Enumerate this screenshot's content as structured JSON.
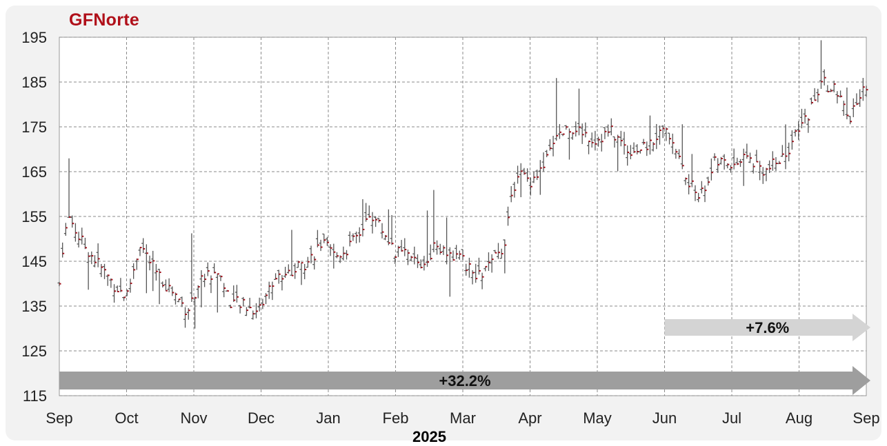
{
  "chart_data": {
    "type": "ohlc",
    "title": "GFNorte",
    "xlabel": "2025",
    "ylabel": "",
    "ylim": [
      115,
      195
    ],
    "yticks": [
      195,
      185,
      175,
      165,
      155,
      145,
      135,
      125,
      115
    ],
    "xtick_labels": [
      "Sep",
      "Oct",
      "Nov",
      "Dec",
      "Jan",
      "Feb",
      "Mar",
      "Apr",
      "May",
      "Jun",
      "Jul",
      "Aug",
      "Sep"
    ],
    "grid": true,
    "annotations": [
      {
        "label": "+7.6%",
        "from_month": "Jun",
        "to_month": "Sep"
      },
      {
        "label": "+32.2%",
        "from_month": "Sep",
        "to_month": "Sep"
      }
    ],
    "colors": {
      "bars": "#555555",
      "close_tick": "#a0101a",
      "title": "#b0101a",
      "arrow_small": "#d4d4d4",
      "arrow_large": "#9e9e9e"
    },
    "anchors": [
      {
        "m": 0.0,
        "v": 140
      },
      {
        "m": 0.06,
        "v": 150
      },
      {
        "m": 0.15,
        "v": 155
      },
      {
        "m": 0.3,
        "v": 150
      },
      {
        "m": 0.55,
        "v": 145
      },
      {
        "m": 0.8,
        "v": 140
      },
      {
        "m": 1.0,
        "v": 137
      },
      {
        "m": 1.2,
        "v": 149
      },
      {
        "m": 1.45,
        "v": 142
      },
      {
        "m": 1.7,
        "v": 138
      },
      {
        "m": 1.9,
        "v": 134
      },
      {
        "m": 2.1,
        "v": 141
      },
      {
        "m": 2.35,
        "v": 143
      },
      {
        "m": 2.55,
        "v": 136
      },
      {
        "m": 2.75,
        "v": 135
      },
      {
        "m": 2.95,
        "v": 134
      },
      {
        "m": 3.2,
        "v": 141
      },
      {
        "m": 3.45,
        "v": 143
      },
      {
        "m": 3.7,
        "v": 145
      },
      {
        "m": 3.9,
        "v": 149
      },
      {
        "m": 4.1,
        "v": 146
      },
      {
        "m": 4.3,
        "v": 148
      },
      {
        "m": 4.5,
        "v": 152
      },
      {
        "m": 4.62,
        "v": 156
      },
      {
        "m": 4.85,
        "v": 151
      },
      {
        "m": 5.0,
        "v": 147
      },
      {
        "m": 5.2,
        "v": 146
      },
      {
        "m": 5.4,
        "v": 144
      },
      {
        "m": 5.6,
        "v": 149
      },
      {
        "m": 5.8,
        "v": 147
      },
      {
        "m": 6.0,
        "v": 145
      },
      {
        "m": 6.2,
        "v": 141
      },
      {
        "m": 6.4,
        "v": 144
      },
      {
        "m": 6.6,
        "v": 148
      },
      {
        "m": 6.8,
        "v": 165
      },
      {
        "m": 7.0,
        "v": 163
      },
      {
        "m": 7.2,
        "v": 166
      },
      {
        "m": 7.45,
        "v": 174
      },
      {
        "m": 7.7,
        "v": 175
      },
      {
        "m": 7.95,
        "v": 172
      },
      {
        "m": 8.2,
        "v": 174
      },
      {
        "m": 8.45,
        "v": 170
      },
      {
        "m": 8.7,
        "v": 170
      },
      {
        "m": 8.95,
        "v": 174
      },
      {
        "m": 9.1,
        "v": 173
      },
      {
        "m": 9.35,
        "v": 162
      },
      {
        "m": 9.55,
        "v": 160
      },
      {
        "m": 9.75,
        "v": 167
      },
      {
        "m": 10.0,
        "v": 167
      },
      {
        "m": 10.25,
        "v": 168
      },
      {
        "m": 10.5,
        "v": 165
      },
      {
        "m": 10.75,
        "v": 168
      },
      {
        "m": 11.0,
        "v": 174
      },
      {
        "m": 11.2,
        "v": 180
      },
      {
        "m": 11.35,
        "v": 185
      },
      {
        "m": 11.55,
        "v": 183
      },
      {
        "m": 11.75,
        "v": 176
      },
      {
        "m": 11.9,
        "v": 182
      },
      {
        "m": 12.0,
        "v": 184
      }
    ]
  }
}
